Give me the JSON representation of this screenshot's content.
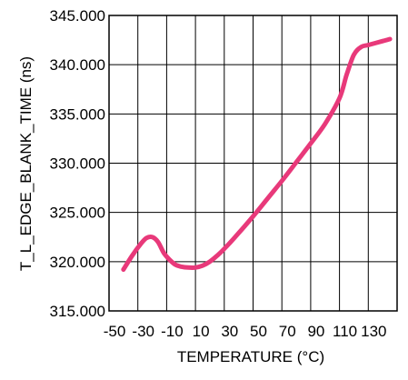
{
  "chart_data": {
    "type": "line",
    "title": "",
    "xlabel": "TEMPERATURE (°C)",
    "ylabel": "T_L_EDGE_BLANK_TIME (ns)",
    "xlim": [
      -50,
      150
    ],
    "ylim": [
      315,
      345
    ],
    "x_tick_labels": [
      "-50",
      "-30",
      "-10",
      "10",
      "30",
      "50",
      "70",
      "90",
      "110",
      "130"
    ],
    "y_tick_labels": [
      "315.000",
      "320.000",
      "325.000",
      "330.000",
      "335.000",
      "340.000",
      "345.000"
    ],
    "grid": true,
    "legend": "none",
    "series": [
      {
        "color": "#e8397a",
        "x": [
          -40,
          -34,
          -28,
          -24,
          -20,
          -16,
          -12,
          -8,
          -4,
          0,
          5,
          10,
          15,
          20,
          25,
          30,
          40,
          50,
          60,
          70,
          80,
          90,
          100,
          110,
          115,
          120,
          125,
          130,
          140,
          145
        ],
        "y": [
          319.2,
          320.6,
          321.8,
          322.4,
          322.5,
          322.0,
          320.9,
          320.2,
          319.7,
          319.5,
          319.4,
          319.4,
          319.6,
          320.0,
          320.6,
          321.3,
          322.9,
          324.6,
          326.4,
          328.2,
          330.1,
          332.0,
          334.0,
          336.6,
          339.0,
          341.0,
          341.8,
          342.0,
          342.4,
          342.6
        ]
      }
    ]
  }
}
